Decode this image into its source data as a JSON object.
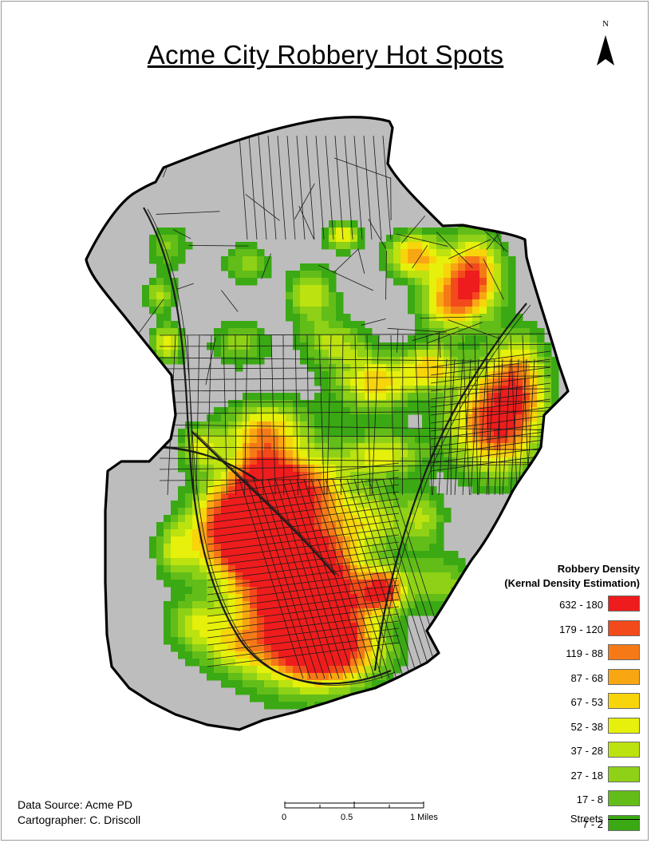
{
  "title": "Acme City Robbery Hot Spots",
  "north_label": "N",
  "legend": {
    "title_line1": "Robbery Density",
    "title_line2": "(Kernal Density Estimation)",
    "classes": [
      {
        "label": "632 - 180",
        "color": "#ee1c1c"
      },
      {
        "label": "179 - 120",
        "color": "#f24a1a"
      },
      {
        "label": "119 - 88",
        "color": "#f57a17"
      },
      {
        "label": "87 - 68",
        "color": "#f8a712"
      },
      {
        "label": "67 - 53",
        "color": "#f8d40a"
      },
      {
        "label": "52 - 38",
        "color": "#e6f00a"
      },
      {
        "label": "37 - 28",
        "color": "#bce20f"
      },
      {
        "label": "27 - 18",
        "color": "#8ed116"
      },
      {
        "label": "17 - 8",
        "color": "#63bd19"
      },
      {
        "label": "7 - 2",
        "color": "#3aa914"
      }
    ],
    "streets_label": "Streets"
  },
  "credits": {
    "source": "Data Source: Acme PD",
    "cartographer": "Cartographer: C. Driscoll"
  },
  "scale": {
    "labels": [
      "0",
      "0.5",
      "1 Miles"
    ]
  },
  "colors": {
    "city_fill": "#bdbdbd",
    "boundary": "#000000",
    "streets": "#1a1a1a"
  }
}
